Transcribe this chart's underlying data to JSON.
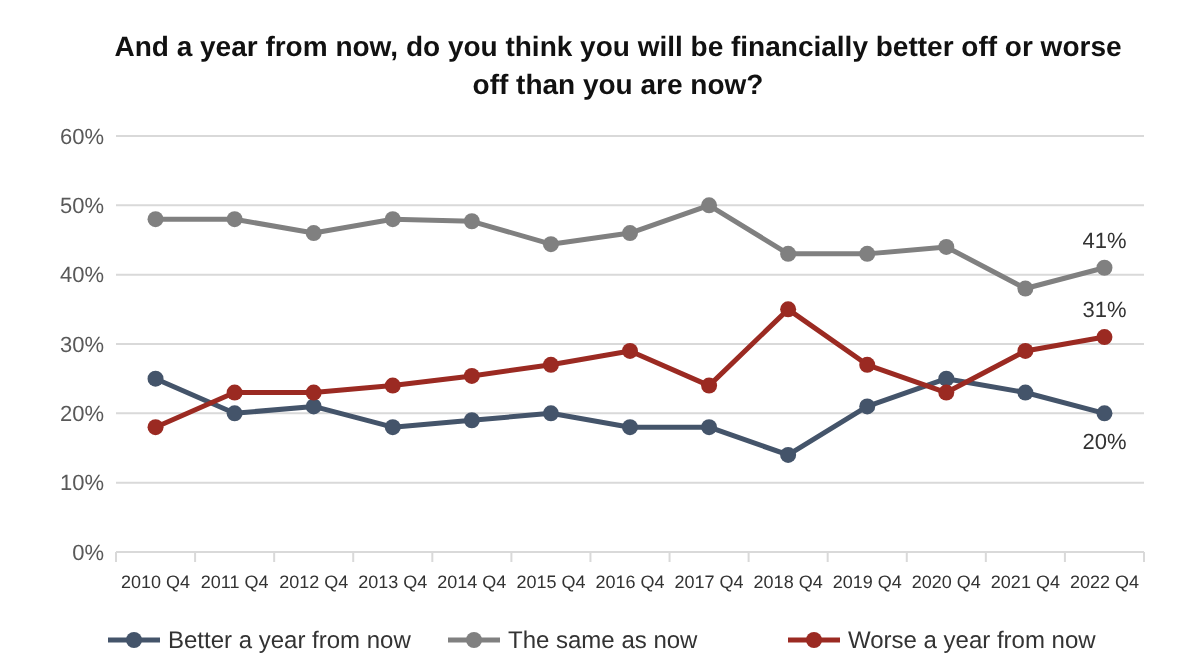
{
  "chart_data": {
    "type": "line",
    "title": "And a year from now, do you think you will be financially better off or worse off than you are now?",
    "categories": [
      "2010 Q4",
      "2011 Q4",
      "2012 Q4",
      "2013 Q4",
      "2014 Q4",
      "2015 Q4",
      "2016 Q4",
      "2017 Q4",
      "2018 Q4",
      "2019 Q4",
      "2020 Q4",
      "2021 Q4",
      "2022 Q4"
    ],
    "series": [
      {
        "name": "Better a year from now",
        "color": "#44546a",
        "values": [
          25,
          20,
          21,
          18,
          19,
          20,
          18,
          18,
          14,
          21,
          25,
          23,
          20
        ],
        "value_labels": [
          null,
          null,
          null,
          null,
          null,
          null,
          null,
          null,
          null,
          null,
          null,
          null,
          "20%"
        ]
      },
      {
        "name": "The same as now",
        "color": "#808080",
        "values": [
          48,
          48,
          46,
          48,
          47.7,
          44.4,
          46,
          50,
          43,
          43,
          44,
          38,
          41
        ],
        "value_labels": [
          null,
          null,
          null,
          null,
          null,
          null,
          null,
          null,
          null,
          null,
          null,
          null,
          "41%"
        ]
      },
      {
        "name": "Worse a year from now",
        "color": "#9b2a22",
        "values": [
          18,
          23,
          23,
          24,
          25.4,
          27,
          29,
          24,
          35,
          27,
          23,
          29,
          31
        ],
        "value_labels": [
          null,
          null,
          null,
          null,
          null,
          null,
          null,
          null,
          null,
          null,
          null,
          null,
          "31%"
        ]
      }
    ],
    "ylim": [
      0,
      60
    ],
    "yticks": [
      {
        "value": 0,
        "label": "0%"
      },
      {
        "value": 10,
        "label": "10%"
      },
      {
        "value": 20,
        "label": "20%"
      },
      {
        "value": 30,
        "label": "30%"
      },
      {
        "value": 40,
        "label": "40%"
      },
      {
        "value": 50,
        "label": "50%"
      },
      {
        "value": 60,
        "label": "60%"
      }
    ],
    "grid": "y",
    "legend": "bottom",
    "marker": "circle",
    "line_style": "solid"
  }
}
